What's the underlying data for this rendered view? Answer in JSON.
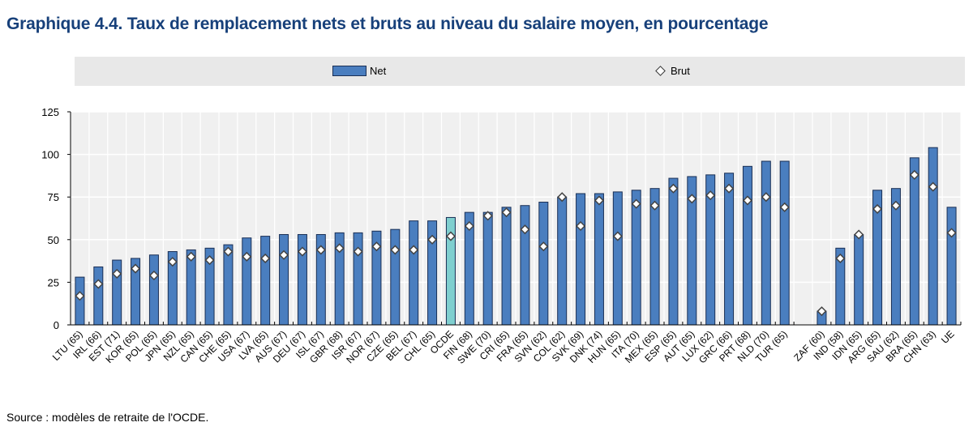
{
  "title": "Graphique 4.4. Taux de remplacement nets et bruts au niveau du salaire moyen, en pourcentage",
  "source": "Source : modèles de retraite de l'OCDE.",
  "colors": {
    "net": "#4a7ebf",
    "oecd": "#7fcfcf",
    "plot_bg": "#f0f0f0",
    "title": "#17407a"
  },
  "chart_data": {
    "type": "bar",
    "title": "Graphique 4.4. Taux de remplacement nets et bruts au niveau du salaire moyen, en pourcentage",
    "xlabel": "",
    "ylabel": "",
    "ylim": [
      0,
      125
    ],
    "yticks": [
      0,
      25,
      50,
      75,
      100,
      125
    ],
    "grid": true,
    "legend": {
      "position": "top",
      "entries": [
        "Net",
        "Brut"
      ]
    },
    "categories": [
      "LTU (65)",
      "IRL (66)",
      "EST (71)",
      "KOR (65)",
      "POL (65)",
      "JPN (65)",
      "NZL (65)",
      "CAN (65)",
      "CHE (65)",
      "USA (67)",
      "LVA (65)",
      "AUS (67)",
      "DEU (67)",
      "ISL (67)",
      "GBR (68)",
      "ISR (67)",
      "NOR (67)",
      "CZE (65)",
      "BEL (67)",
      "CHL (65)",
      "OCDE",
      "FIN (68)",
      "SWE (70)",
      "CRI (65)",
      "FRA (65)",
      "SVN (62)",
      "COL (62)",
      "SVK (69)",
      "DNK (74)",
      "HUN (65)",
      "ITA (70)",
      "MEX (65)",
      "ESP (65)",
      "AUT (65)",
      "LUX (62)",
      "GRC (66)",
      "PRT (68)",
      "NLD (70)",
      "TUR (65)",
      "",
      "ZAF (60)",
      "IND (58)",
      "IDN (65)",
      "ARG (65)",
      "SAU (62)",
      "BRA (65)",
      "CHN (63)",
      "UE"
    ],
    "series": [
      {
        "name": "Net",
        "type": "bar",
        "values": [
          28,
          34,
          38,
          39,
          41,
          43,
          44,
          45,
          47,
          51,
          52,
          53,
          53,
          53,
          54,
          54,
          55,
          56,
          61,
          61,
          63,
          66,
          66,
          69,
          70,
          72,
          75,
          77,
          77,
          78,
          79,
          80,
          86,
          87,
          88,
          89,
          93,
          96,
          96,
          null,
          8,
          45,
          53,
          79,
          80,
          98,
          104,
          69
        ]
      },
      {
        "name": "Brut",
        "type": "marker",
        "values": [
          17,
          24,
          30,
          33,
          29,
          37,
          40,
          38,
          43,
          40,
          39,
          41,
          43,
          44,
          45,
          43,
          46,
          44,
          44,
          50,
          52,
          58,
          64,
          66,
          56,
          46,
          75,
          58,
          73,
          52,
          71,
          70,
          80,
          74,
          76,
          80,
          73,
          75,
          69,
          null,
          8,
          39,
          53,
          68,
          70,
          88,
          81,
          54
        ]
      }
    ],
    "highlight": "OCDE"
  }
}
